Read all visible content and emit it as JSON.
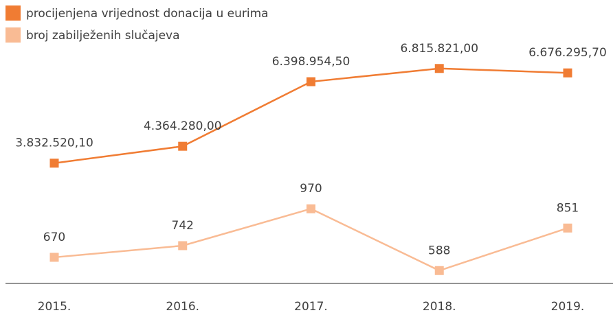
{
  "chart_data": {
    "type": "line",
    "categories": [
      "2015.",
      "2016.",
      "2017.",
      "2018.",
      "2019."
    ],
    "series": [
      {
        "name": "procijenjena vrijednost donacija u eurima",
        "color": "#f07c33",
        "values": [
          3832520.1,
          4364280.0,
          6398954.5,
          6815821.0,
          6676295.7
        ],
        "value_labels": [
          "3.832.520,10",
          "4.364.280,00",
          "6.398.954,50",
          "6.815.821,00",
          "6.676.295,70"
        ]
      },
      {
        "name": "broj zabilježenih slučajeva",
        "color": "#f9bb94",
        "axis": "y2",
        "values": [
          670,
          742,
          970,
          588,
          851
        ]
      }
    ],
    "ylim": [
      0,
      8000000
    ],
    "y2lim": [
      500,
      2070
    ],
    "legend": "top-left"
  }
}
